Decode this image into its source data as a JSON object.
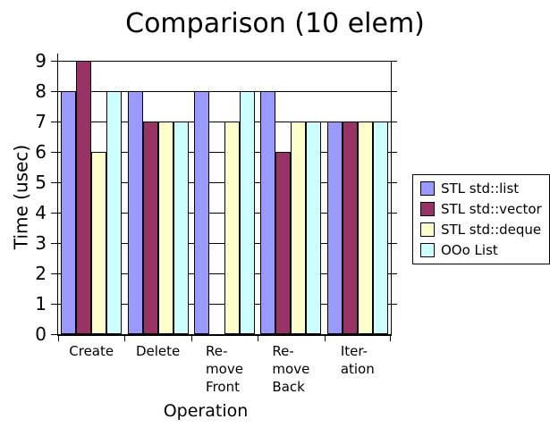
{
  "window": {
    "background": "#ffffff",
    "text_color": "#000000"
  },
  "chart_data": {
    "type": "bar",
    "title": "Comparison (10 elem)",
    "xlabel": "Operation",
    "ylabel": "Time (usec)",
    "ylim": [
      0,
      9
    ],
    "yticks": [
      0,
      1,
      2,
      3,
      4,
      5,
      6,
      7,
      8,
      9
    ],
    "grid": true,
    "legend_position": "right",
    "categories": [
      "Create",
      "Delete",
      "Remove Front",
      "Remove Back",
      "Iteration"
    ],
    "category_display_lines": [
      [
        "Create"
      ],
      [
        "Delete"
      ],
      [
        "Re-",
        "move",
        "Front"
      ],
      [
        "Re-",
        "move",
        "Back"
      ],
      [
        "Iter-",
        "ation"
      ]
    ],
    "series": [
      {
        "name": "STL std::list",
        "color": "#9999FF",
        "values": [
          8,
          8,
          8,
          8,
          7
        ]
      },
      {
        "name": "STL std::vector",
        "color": "#993366",
        "values": [
          9,
          7,
          0,
          6,
          7
        ]
      },
      {
        "name": "STL std::deque",
        "color": "#FFFFCC",
        "values": [
          6,
          7,
          7,
          7,
          7
        ]
      },
      {
        "name": "OOo List",
        "color": "#CCFFFF",
        "values": [
          8,
          7,
          8,
          7,
          7
        ]
      }
    ]
  }
}
